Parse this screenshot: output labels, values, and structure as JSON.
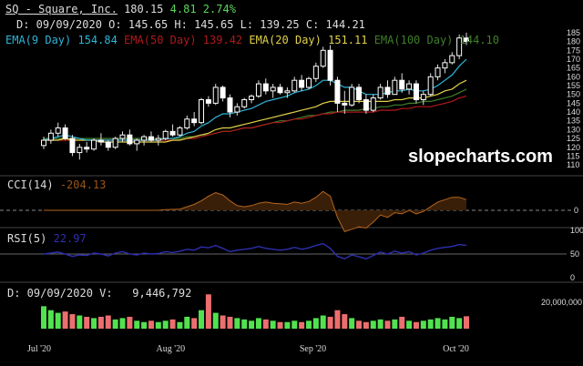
{
  "header": {
    "symbol_link": "SQ - Square, Inc.",
    "last": "180.15",
    "change": "4.81",
    "change_pct": "2.74%",
    "ohlc_line": "D: 09/09/2020 O: 145.65 H: 145.65 L: 139.25 C: 144.21",
    "ema9_label": "EMA(9 Day)",
    "ema9_value": "154.84",
    "ema50_label": "EMA(50 Day)",
    "ema50_value": "139.42",
    "ema20_label": "EMA(20 Day)",
    "ema20_value": "151.11",
    "ema100_label": "EMA(100 Day)",
    "ema100_value": "144.10"
  },
  "panels": {
    "cci_label": "CCI(14)",
    "cci_value": "-204.13",
    "rsi_label": "RSI(5)",
    "rsi_value": "22.97",
    "vol_line": "D: 09/09/2020 V:   9,446,792"
  },
  "watermark": "slopecharts.com",
  "colors": {
    "up": "#ffffff",
    "down": "#ffffff",
    "ema9": "#2fb4d8",
    "ema20": "#e2d24a",
    "ema50": "#b0191b",
    "ema100": "#3f7f2a",
    "cci": "#b5651d",
    "rsi": "#2d2fae",
    "vol_up": "#52e14f",
    "vol_down": "#ec6e6e",
    "green": "#5cd65c"
  },
  "chart_data": {
    "type": "candlestick",
    "x_ticks": [
      "Jul '20",
      "Aug '20",
      "Sep '20",
      "Oct '20"
    ],
    "y_ticks": [
      110,
      115,
      120,
      125,
      130,
      135,
      140,
      145,
      150,
      155,
      160,
      165,
      170,
      175,
      180,
      185
    ],
    "ylim": [
      108,
      186
    ],
    "candles": [
      [
        121,
        126,
        119,
        124
      ],
      [
        124,
        130,
        122,
        128
      ],
      [
        128,
        134,
        126,
        131
      ],
      [
        131,
        133,
        124,
        125
      ],
      [
        125,
        127,
        115,
        117
      ],
      [
        117,
        122,
        113,
        120
      ],
      [
        120,
        123,
        117,
        119
      ],
      [
        119,
        125,
        118,
        124
      ],
      [
        124,
        128,
        121,
        123
      ],
      [
        123,
        124,
        118,
        120
      ],
      [
        120,
        126,
        119,
        125
      ],
      [
        125,
        129,
        123,
        127
      ],
      [
        127,
        130,
        121,
        122
      ],
      [
        122,
        125,
        118,
        124
      ],
      [
        124,
        127,
        121,
        126
      ],
      [
        126,
        129,
        123,
        124
      ],
      [
        124,
        127,
        121,
        125
      ],
      [
        125,
        130,
        124,
        129
      ],
      [
        129,
        133,
        126,
        127
      ],
      [
        127,
        132,
        126,
        131
      ],
      [
        131,
        138,
        130,
        136
      ],
      [
        136,
        140,
        132,
        134
      ],
      [
        134,
        148,
        133,
        147
      ],
      [
        147,
        149,
        143,
        145
      ],
      [
        145,
        156,
        144,
        154
      ],
      [
        154,
        155,
        146,
        148
      ],
      [
        148,
        150,
        137,
        140
      ],
      [
        140,
        145,
        138,
        143
      ],
      [
        143,
        148,
        142,
        147
      ],
      [
        147,
        150,
        145,
        149
      ],
      [
        149,
        158,
        148,
        156
      ],
      [
        156,
        159,
        150,
        152
      ],
      [
        152,
        156,
        148,
        154
      ],
      [
        154,
        156,
        150,
        151
      ],
      [
        151,
        154,
        148,
        152
      ],
      [
        152,
        160,
        151,
        158
      ],
      [
        158,
        161,
        152,
        154
      ],
      [
        154,
        160,
        153,
        159
      ],
      [
        159,
        168,
        157,
        166
      ],
      [
        166,
        177,
        165,
        175
      ],
      [
        175,
        178,
        155,
        158
      ],
      [
        158,
        160,
        140,
        145
      ],
      [
        145,
        152,
        139,
        144
      ],
      [
        144,
        156,
        143,
        154
      ],
      [
        154,
        156,
        145,
        147
      ],
      [
        147,
        150,
        139,
        141
      ],
      [
        141,
        150,
        140,
        148
      ],
      [
        148,
        156,
        147,
        154
      ],
      [
        154,
        158,
        148,
        150
      ],
      [
        150,
        160,
        150,
        158
      ],
      [
        158,
        162,
        151,
        153
      ],
      [
        153,
        158,
        150,
        156
      ],
      [
        156,
        158,
        145,
        147
      ],
      [
        147,
        152,
        144,
        150
      ],
      [
        150,
        162,
        149,
        160
      ],
      [
        160,
        167,
        158,
        165
      ],
      [
        165,
        170,
        162,
        168
      ],
      [
        168,
        174,
        167,
        172
      ],
      [
        172,
        184,
        170,
        182
      ],
      [
        182,
        185,
        178,
        180
      ]
    ],
    "ema9": [
      124,
      125,
      126,
      127,
      126,
      125,
      124,
      124,
      124,
      124,
      124,
      124,
      124,
      124,
      124,
      124,
      124,
      125,
      125,
      126,
      128,
      129,
      132,
      134,
      137,
      139,
      139,
      140,
      141,
      142,
      144,
      146,
      147,
      148,
      149,
      151,
      152,
      153,
      155,
      158,
      158,
      156,
      154,
      154,
      152,
      150,
      150,
      150,
      151,
      152,
      152,
      153,
      152,
      152,
      153,
      155,
      158,
      161,
      166,
      170
    ],
    "ema20": [
      124,
      124,
      124,
      125,
      124,
      124,
      124,
      124,
      123,
      123,
      123,
      123,
      123,
      123,
      123,
      123,
      123,
      123,
      124,
      124,
      125,
      126,
      127,
      128,
      130,
      131,
      131,
      132,
      133,
      134,
      135,
      136,
      137,
      138,
      139,
      140,
      141,
      142,
      143,
      145,
      146,
      146,
      146,
      146,
      146,
      146,
      146,
      146,
      146,
      147,
      147,
      148,
      148,
      148,
      149,
      150,
      152,
      153,
      156,
      158
    ],
    "ema50": [
      124,
      124,
      124,
      124,
      124,
      124,
      124,
      124,
      124,
      124,
      124,
      124,
      124,
      124,
      124,
      124,
      124,
      124,
      124,
      124,
      125,
      125,
      126,
      127,
      128,
      129,
      129,
      130,
      131,
      131,
      132,
      133,
      134,
      134,
      135,
      136,
      136,
      137,
      138,
      139,
      139,
      140,
      140,
      140,
      140,
      140,
      140,
      141,
      141,
      141,
      142,
      142,
      143,
      143,
      143,
      144,
      145,
      146,
      148,
      149
    ],
    "ema100": [
      125,
      125,
      125,
      125,
      125,
      125,
      125,
      125,
      125,
      125,
      125,
      125,
      125,
      125,
      125,
      125,
      125,
      125,
      125,
      125,
      126,
      126,
      127,
      127,
      128,
      129,
      129,
      130,
      131,
      131,
      132,
      133,
      134,
      135,
      135,
      136,
      137,
      138,
      138,
      139,
      140,
      140,
      141,
      141,
      141,
      142,
      142,
      143,
      143,
      144,
      144,
      145,
      145,
      146,
      146,
      147,
      148,
      149,
      151,
      153
    ],
    "cci": [
      0,
      0,
      0,
      0,
      0,
      0,
      0,
      0,
      0,
      0,
      0,
      0,
      0,
      0,
      0,
      0,
      0,
      5,
      8,
      10,
      30,
      50,
      80,
      120,
      150,
      130,
      80,
      40,
      30,
      40,
      60,
      70,
      60,
      55,
      50,
      70,
      60,
      75,
      110,
      160,
      120,
      -60,
      -180,
      -160,
      -140,
      -150,
      -100,
      -40,
      -60,
      -20,
      -30,
      0,
      -30,
      -10,
      30,
      70,
      90,
      110,
      110,
      90
    ],
    "rsi": [
      50,
      52,
      54,
      50,
      45,
      48,
      47,
      52,
      50,
      46,
      52,
      55,
      50,
      48,
      52,
      50,
      51,
      55,
      53,
      56,
      60,
      58,
      65,
      63,
      68,
      62,
      55,
      58,
      60,
      62,
      66,
      62,
      60,
      58,
      60,
      64,
      60,
      63,
      68,
      72,
      62,
      45,
      40,
      48,
      44,
      40,
      47,
      54,
      50,
      56,
      52,
      55,
      48,
      52,
      58,
      62,
      64,
      66,
      70,
      68
    ],
    "volume_millions": [
      17,
      14,
      12,
      13,
      11,
      10,
      9,
      8,
      9,
      10,
      7,
      8,
      9,
      6,
      5,
      6,
      5,
      6,
      7,
      5,
      9,
      8,
      14,
      26,
      12,
      10,
      9,
      8,
      7,
      6,
      8,
      7,
      6,
      5,
      5,
      6,
      5,
      6,
      8,
      10,
      9,
      14,
      11,
      8,
      6,
      5,
      6,
      7,
      6,
      7,
      9,
      6,
      5,
      6,
      7,
      8,
      7,
      9,
      8,
      9.4
    ],
    "volume_tick": "20,000,000"
  }
}
